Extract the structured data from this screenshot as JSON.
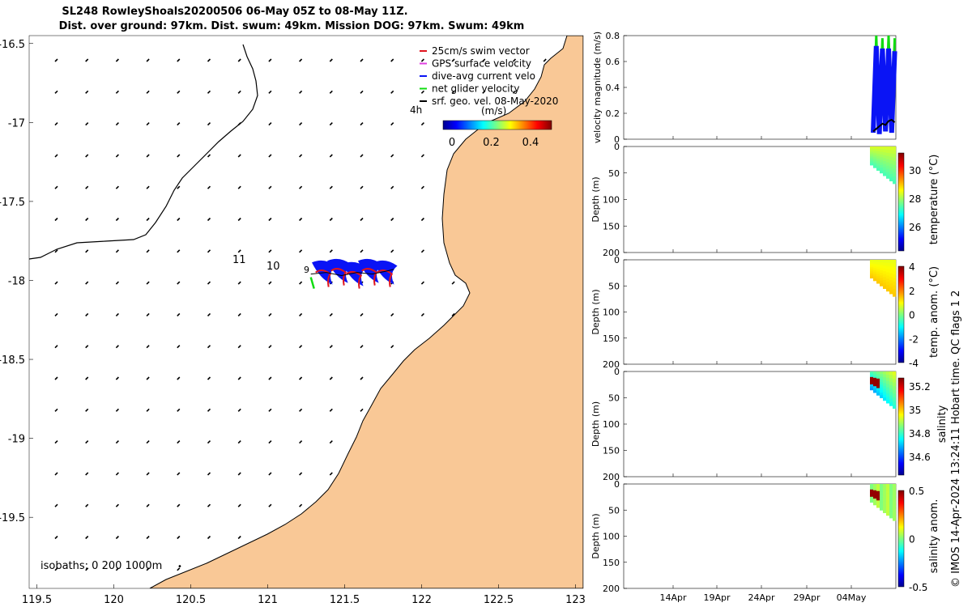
{
  "title": {
    "line1": "SL248 RowleyShoals20200506 06-May 05Z to 08-May 11Z.",
    "line2": "Dist. over ground: 97km. Dist. swum: 49km. Mission DOG: 97km. Swum: 49km"
  },
  "colors": {
    "land": "#f9c896",
    "water": "#ffffff",
    "swim_vector": "#e0141e",
    "gps_velocity": "#e040e0",
    "current": "#0a14f5",
    "net_velocity": "#10dc10",
    "geo_vel": "#000000"
  },
  "map": {
    "legend": [
      {
        "label": "25cm/s swim vector",
        "color": "#e0141e"
      },
      {
        "label": "GPS surface velocity",
        "color": "#e040e0"
      },
      {
        "label": "dive-avg current velo",
        "color": "#0a14f5"
      },
      {
        "label": "net glider velocity",
        "color": "#10dc10"
      },
      {
        "label": "srf. geo. vel. 08-May-2020",
        "color": "#000000"
      }
    ],
    "colorbar": {
      "unit": "(m/s)",
      "ticks": [
        "0",
        "0.2",
        "0.4"
      ]
    },
    "hour_label": "4h",
    "track_labels": [
      "11",
      "10",
      "9"
    ],
    "isobaths_label": "isobaths: 0   200  1000m",
    "iso_dot": "•"
  },
  "chart_data": [
    {
      "type": "scatter",
      "name": "glider-track-map",
      "xlabel": "",
      "ylabel": "",
      "xlim": [
        119.45,
        123.05
      ],
      "ylim": [
        -19.95,
        -16.45
      ],
      "xticks": [
        119.5,
        120,
        120.5,
        121,
        121.5,
        122,
        122.5,
        123
      ],
      "xtick_labels": [
        "119.5",
        "120",
        "120.5",
        "121",
        "121.5",
        "122",
        "122.5",
        "123"
      ],
      "yticks": [
        -16.5,
        -17,
        -17.5,
        -18,
        -18.5,
        -19,
        -19.5
      ],
      "ytick_labels": [
        "-16.5",
        "-17",
        "-17.5",
        "-18",
        "-18.5",
        "-19",
        "-19.5"
      ],
      "track": {
        "lon": [
          121.28,
          121.38,
          121.48,
          121.58,
          121.68,
          121.78,
          121.82
        ],
        "lat": [
          -17.98,
          -17.97,
          -17.99,
          -17.97,
          -17.98,
          -17.96,
          -17.95
        ]
      }
    },
    {
      "type": "line",
      "name": "velocity-magnitude",
      "ylabel": "velocity magnitude (m/s)",
      "ylim": [
        0,
        0.8
      ],
      "yticks": [
        "0",
        "0.2",
        "0.4",
        "0.6",
        "0.8"
      ],
      "xtick_labels": [
        "14Apr",
        "19Apr",
        "24Apr",
        "29Apr",
        "04May"
      ],
      "series": [
        {
          "name": "net glider velocity",
          "values": [
            0.05,
            0.8,
            0.1,
            0.78,
            0.08,
            0.8,
            0.12,
            0.78
          ]
        },
        {
          "name": "dive-avg current",
          "values": [
            0.05,
            0.72,
            0.04,
            0.7,
            0.06,
            0.7,
            0.05,
            0.68
          ]
        },
        {
          "name": "surface geo vel",
          "values": [
            0.06,
            0.08,
            0.1,
            0.12,
            0.11,
            0.14,
            0.15,
            0.13
          ]
        }
      ]
    },
    {
      "type": "heatmap",
      "name": "temperature",
      "ylabel": "Depth (m)",
      "ylim": [
        200,
        0
      ],
      "yticks": [
        "0",
        "50",
        "100",
        "150",
        "200"
      ],
      "colorbar_label": "temperature (°C)",
      "colorbar_ticks": [
        "30",
        "28",
        "26"
      ],
      "clim": [
        24.8,
        31.2
      ]
    },
    {
      "type": "heatmap",
      "name": "temp-anomaly",
      "ylabel": "Depth (m)",
      "ylim": [
        200,
        0
      ],
      "yticks": [
        "0",
        "50",
        "100",
        "150",
        "200"
      ],
      "colorbar_label": "temp. anom. (°C)",
      "colorbar_ticks": [
        "4",
        "2",
        "0",
        "-2",
        "-4"
      ],
      "clim": [
        -4,
        4
      ]
    },
    {
      "type": "heatmap",
      "name": "salinity",
      "ylabel": "Depth (m)",
      "ylim": [
        200,
        0
      ],
      "yticks": [
        "0",
        "50",
        "100",
        "150",
        "200"
      ],
      "colorbar_label": "salinity",
      "colorbar_ticks": [
        "35.2",
        "35",
        "34.8",
        "34.6"
      ],
      "clim": [
        34.5,
        35.3
      ]
    },
    {
      "type": "heatmap",
      "name": "salinity-anomaly",
      "ylabel": "Depth (m)",
      "ylim": [
        200,
        0
      ],
      "yticks": [
        "0",
        "50",
        "100",
        "150",
        "200"
      ],
      "colorbar_label": "salinity anom.",
      "colorbar_ticks": [
        "0.5",
        "0",
        "-0.5"
      ],
      "clim": [
        -0.5,
        0.5
      ],
      "xtick_labels": [
        "14Apr",
        "19Apr",
        "24Apr",
        "29Apr",
        "04May"
      ]
    }
  ],
  "footer_vertical": "© IMOS 14-Apr-2024 13:24:11 Hobart time. QC flags 1  2"
}
